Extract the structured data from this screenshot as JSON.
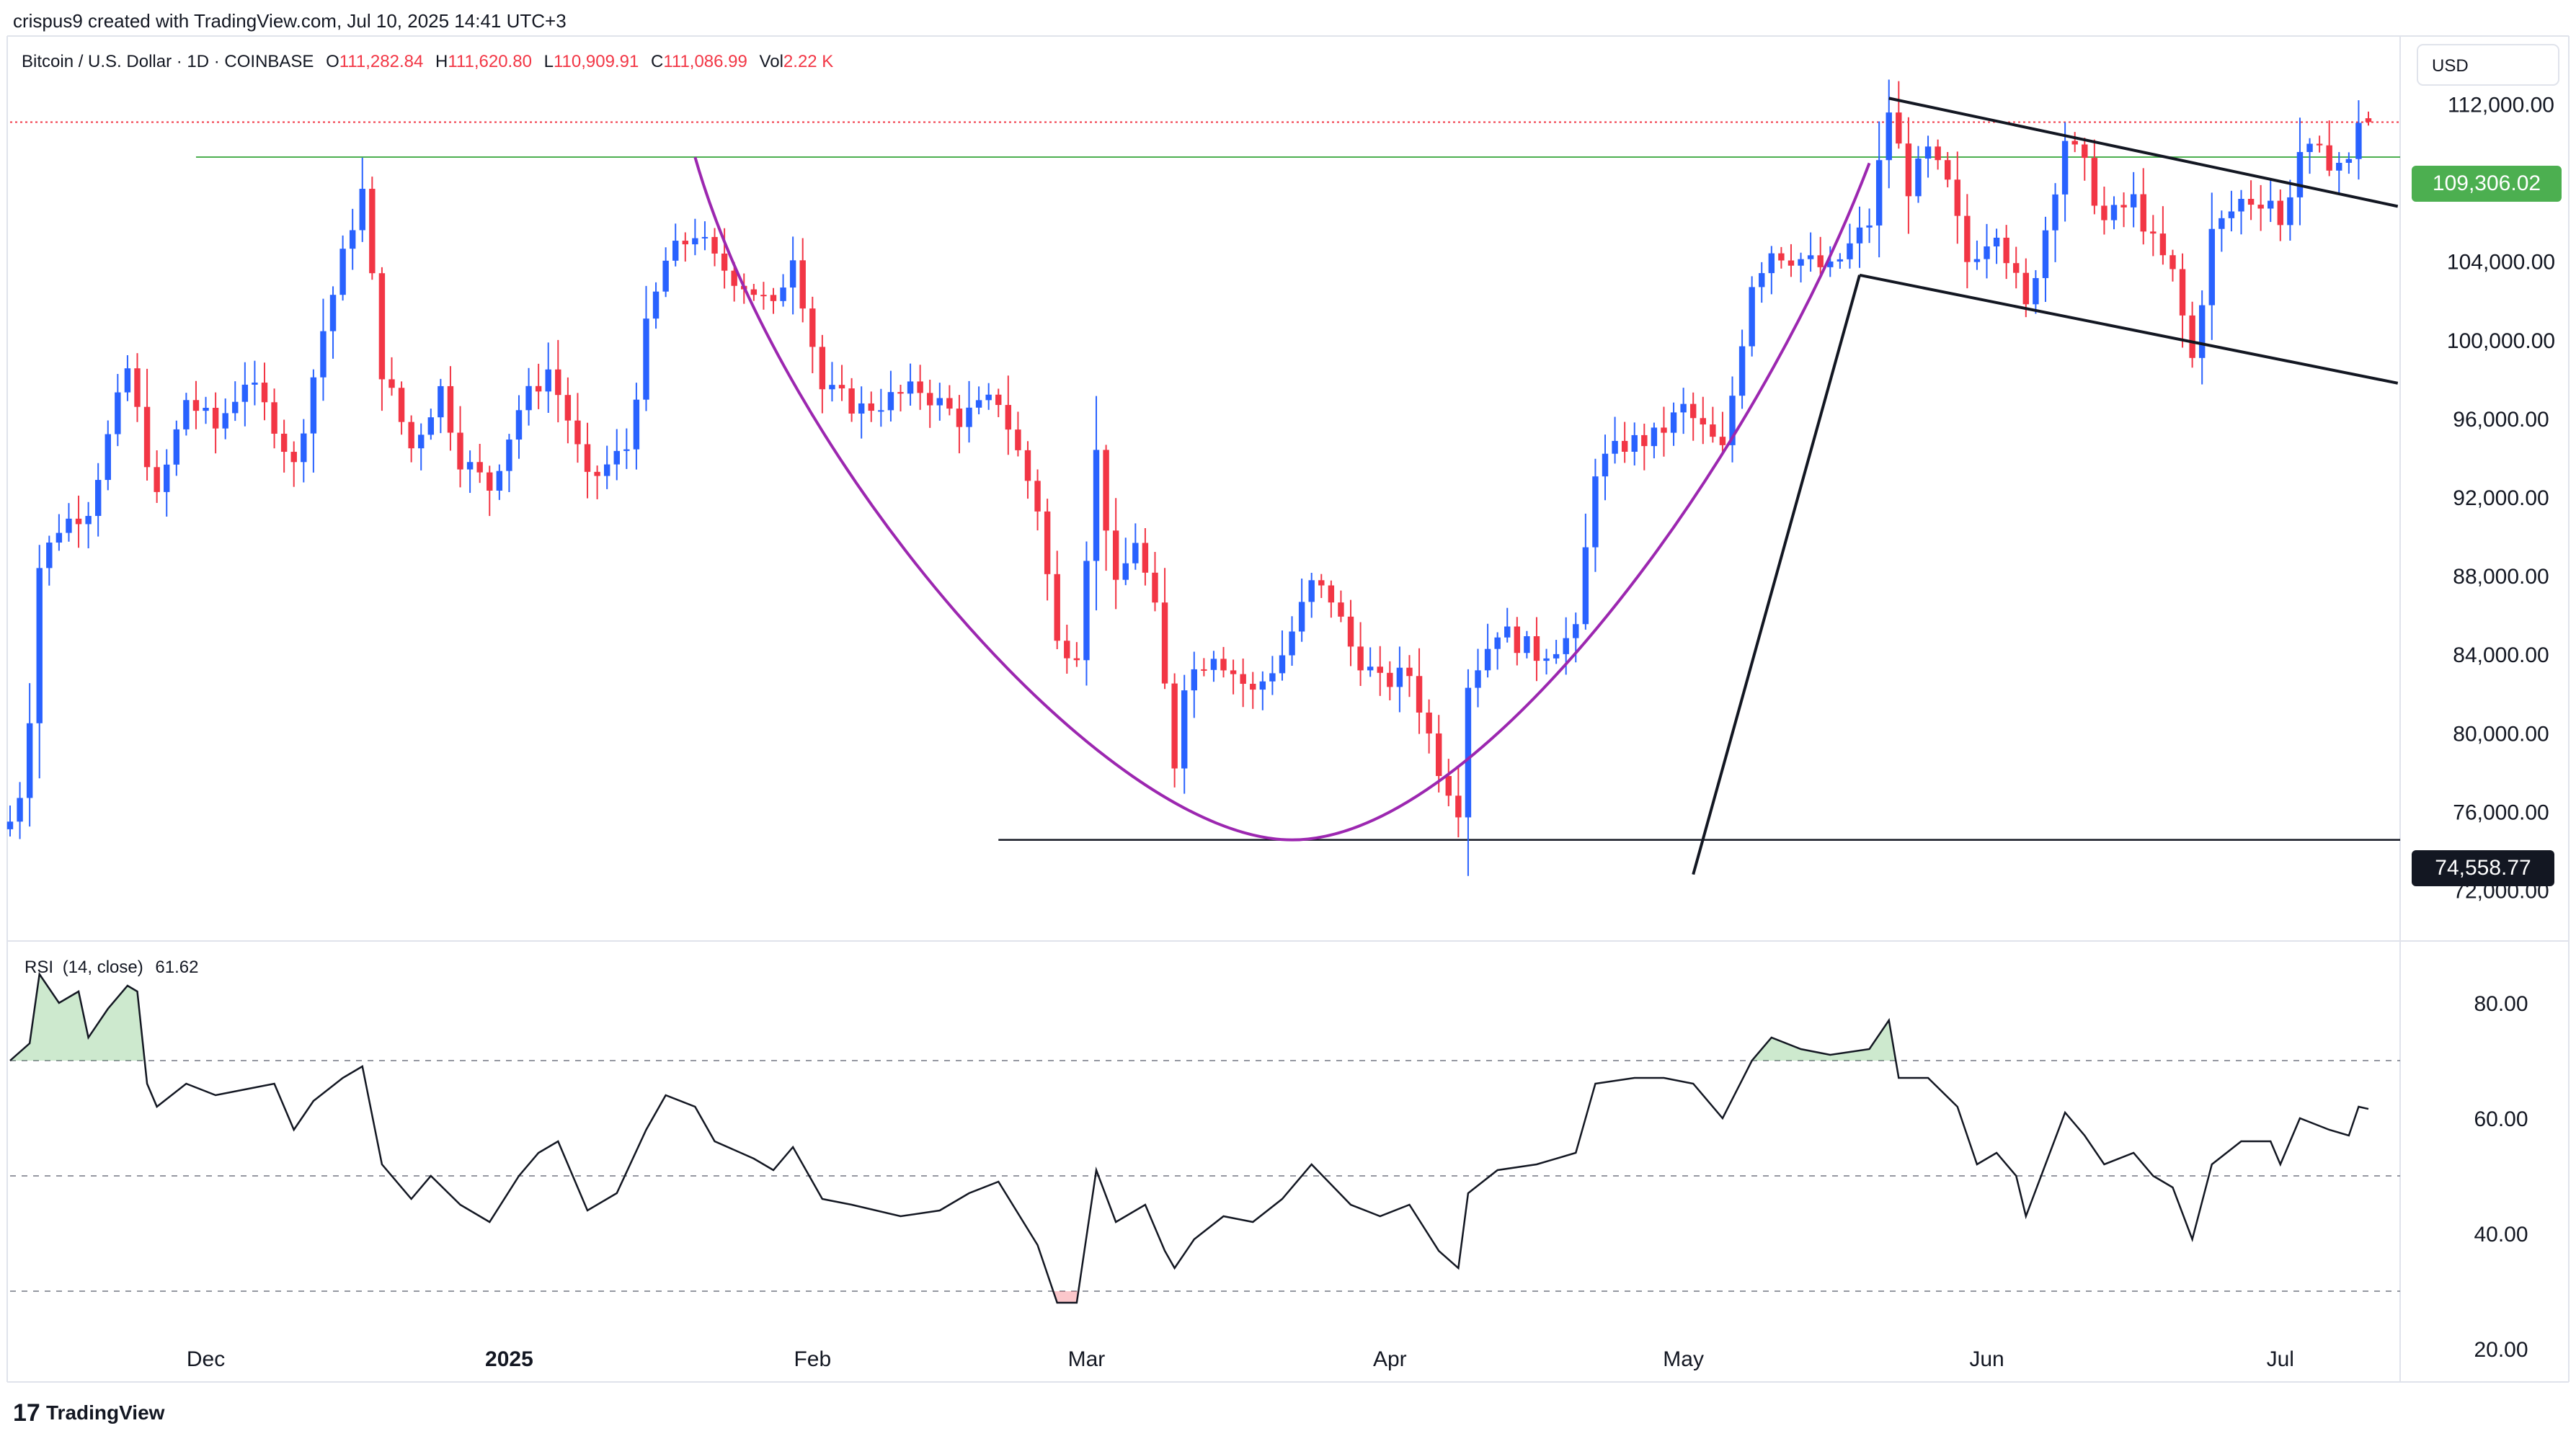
{
  "header": {
    "creator_line": "crispus9 created with TradingView.com, Jul 10, 2025 14:41 UTC+3",
    "symbol": "Bitcoin / U.S. Dollar · 1D · COINBASE",
    "ohlc": [
      {
        "key": "O",
        "value": "111,282.84"
      },
      {
        "key": "H",
        "value": "111,620.80"
      },
      {
        "key": "L",
        "value": "110,909.91"
      },
      {
        "key": "C",
        "value": "111,086.99"
      }
    ],
    "vol_label": "Vol",
    "vol_value": "2.22 K",
    "currency": "USD"
  },
  "price_badges": {
    "resistance": "109,306.02",
    "support": "74,558.77"
  },
  "rsi_label": {
    "name": "RSI",
    "params": "(14, close)",
    "value": "61.62"
  },
  "footer": {
    "logo_mark": "17",
    "brand": "TradingView"
  },
  "colors": {
    "up": "#2962ff",
    "down": "#f23645",
    "cup": "#9c27b0",
    "resistance_line": "#4caf50",
    "badge_green": "#4caf50",
    "trend_lines": "#131722",
    "rsi_line": "#131722",
    "rsi_overbought_fill": "#4caf50",
    "rsi_oversold_fill": "#f23645"
  },
  "chart_data": [
    {
      "type": "candlestick",
      "title": "Bitcoin / U.S. Dollar · 1D · COINBASE",
      "ylabel": "USD",
      "ylim": [
        70000,
        114000
      ],
      "x_range": [
        "2024-11-11",
        "2025-07-10"
      ],
      "x_ticks": [
        {
          "date": "2024-12-01",
          "label": "Dec"
        },
        {
          "date": "2025-01-01",
          "label": "2025"
        },
        {
          "date": "2025-02-01",
          "label": "Feb"
        },
        {
          "date": "2025-03-01",
          "label": "Mar"
        },
        {
          "date": "2025-04-01",
          "label": "Apr"
        },
        {
          "date": "2025-05-01",
          "label": "May"
        },
        {
          "date": "2025-06-01",
          "label": "Jun"
        },
        {
          "date": "2025-07-01",
          "label": "Jul"
        }
      ],
      "y_ticks": [
        {
          "value": 72000,
          "label": "72,000.00"
        },
        {
          "value": 76000,
          "label": "76,000.00"
        },
        {
          "value": 80000,
          "label": "80,000.00"
        },
        {
          "value": 84000,
          "label": "84,000.00"
        },
        {
          "value": 88000,
          "label": "88,000.00"
        },
        {
          "value": 92000,
          "label": "92,000.00"
        },
        {
          "value": 96000,
          "label": "96,000.00"
        },
        {
          "value": 100000,
          "label": "100,000.00"
        },
        {
          "value": 104000,
          "label": "104,000.00"
        },
        {
          "value": 108000,
          "label": "108,000.00"
        },
        {
          "value": 112000,
          "label": "112,000.00"
        }
      ],
      "close_anchors": [
        [
          "2024-11-11",
          75500
        ],
        [
          "2024-11-12",
          77000
        ],
        [
          "2024-11-13",
          81000
        ],
        [
          "2024-11-14",
          88500
        ],
        [
          "2024-11-16",
          90500
        ],
        [
          "2024-11-19",
          91500
        ],
        [
          "2024-11-21",
          95000
        ],
        [
          "2024-11-23",
          98500
        ],
        [
          "2024-11-26",
          91800
        ],
        [
          "2024-11-29",
          97000
        ],
        [
          "2024-12-02",
          95500
        ],
        [
          "2024-12-05",
          98000
        ],
        [
          "2024-12-08",
          95800
        ],
        [
          "2024-12-10",
          93500
        ],
        [
          "2024-12-13",
          100500
        ],
        [
          "2024-12-16",
          106000
        ],
        [
          "2024-12-17",
          107500
        ],
        [
          "2024-12-19",
          98500
        ],
        [
          "2024-12-22",
          94500
        ],
        [
          "2024-12-25",
          97500
        ],
        [
          "2024-12-27",
          94000
        ],
        [
          "2024-12-30",
          92500
        ],
        [
          "2025-01-02",
          96500
        ],
        [
          "2025-01-05",
          98500
        ],
        [
          "2025-01-07",
          96000
        ],
        [
          "2025-01-09",
          92700
        ],
        [
          "2025-01-13",
          94500
        ],
        [
          "2025-01-15",
          100500
        ],
        [
          "2025-01-17",
          104000
        ],
        [
          "2025-01-20",
          105500
        ],
        [
          "2025-01-22",
          104000
        ],
        [
          "2025-01-26",
          102500
        ],
        [
          "2025-01-28",
          101500
        ],
        [
          "2025-01-30",
          104500
        ],
        [
          "2025-02-02",
          97500
        ],
        [
          "2025-02-06",
          96500
        ],
        [
          "2025-02-12",
          97500
        ],
        [
          "2025-02-16",
          96000
        ],
        [
          "2025-02-20",
          97000
        ],
        [
          "2025-02-24",
          91500
        ],
        [
          "2025-02-26",
          84500
        ],
        [
          "2025-02-28",
          84300
        ],
        [
          "2025-03-02",
          94200
        ],
        [
          "2025-03-04",
          87200
        ],
        [
          "2025-03-06",
          89900
        ],
        [
          "2025-03-08",
          86100
        ],
        [
          "2025-03-10",
          78500
        ],
        [
          "2025-03-11",
          82700
        ],
        [
          "2025-03-14",
          84200
        ],
        [
          "2025-03-18",
          82000
        ],
        [
          "2025-03-21",
          84000
        ],
        [
          "2025-03-24",
          87500
        ],
        [
          "2025-03-26",
          86900
        ],
        [
          "2025-03-28",
          84400
        ],
        [
          "2025-03-31",
          82500
        ],
        [
          "2025-04-03",
          83000
        ],
        [
          "2025-04-06",
          78300
        ],
        [
          "2025-04-08",
          76300
        ],
        [
          "2025-04-09",
          82600
        ],
        [
          "2025-04-12",
          85300
        ],
        [
          "2025-04-16",
          84000
        ],
        [
          "2025-04-20",
          85000
        ],
        [
          "2025-04-22",
          93500
        ],
        [
          "2025-04-25",
          94700
        ],
        [
          "2025-04-28",
          95000
        ],
        [
          "2025-05-01",
          96500
        ],
        [
          "2025-05-05",
          94300
        ],
        [
          "2025-05-08",
          103000
        ],
        [
          "2025-05-10",
          104600
        ],
        [
          "2025-05-13",
          104100
        ],
        [
          "2025-05-16",
          103500
        ],
        [
          "2025-05-20",
          106000
        ],
        [
          "2025-05-22",
          111700
        ],
        [
          "2025-05-24",
          107800
        ],
        [
          "2025-05-26",
          109500
        ],
        [
          "2025-05-28",
          107800
        ],
        [
          "2025-05-30",
          104000
        ],
        [
          "2025-06-02",
          105800
        ],
        [
          "2025-06-05",
          101500
        ],
        [
          "2025-06-07",
          105700
        ],
        [
          "2025-06-09",
          110300
        ],
        [
          "2025-06-11",
          108700
        ],
        [
          "2025-06-13",
          106000
        ],
        [
          "2025-06-16",
          107100
        ],
        [
          "2025-06-18",
          104900
        ],
        [
          "2025-06-20",
          103300
        ],
        [
          "2025-06-22",
          99000
        ],
        [
          "2025-06-24",
          105400
        ],
        [
          "2025-06-27",
          107100
        ],
        [
          "2025-06-30",
          107200
        ],
        [
          "2025-07-01",
          105700
        ],
        [
          "2025-07-03",
          109600
        ],
        [
          "2025-07-06",
          109200
        ],
        [
          "2025-07-08",
          108900
        ],
        [
          "2025-07-09",
          111300
        ],
        [
          "2025-07-10",
          111100
        ]
      ],
      "last_candle": {
        "date": "2025-07-10",
        "open": 111282.84,
        "high": 111620.8,
        "low": 110909.91,
        "close": 111086.99
      },
      "annotations": {
        "horizontal_resistance": {
          "price": 109306.02,
          "from": "2024-11-30",
          "to": "2025-07-13"
        },
        "horizontal_support": {
          "price": 74558.77,
          "from": "2025-02-20",
          "to": "2025-07-13"
        },
        "last_price_marker": {
          "price": 111086.99
        },
        "cup_curve": {
          "start": [
            "2025-01-20",
            109300
          ],
          "bottom": [
            "2025-03-22",
            74558.77
          ],
          "end": [
            "2025-05-20",
            109000
          ]
        },
        "flagpole": {
          "from": [
            "2025-05-02",
            72800
          ],
          "to": [
            "2025-05-19",
            103300
          ]
        },
        "flag_upper": {
          "from": [
            "2025-05-22",
            112300
          ],
          "to": [
            "2025-07-13",
            106800
          ]
        },
        "flag_lower": {
          "from": [
            "2025-05-19",
            103300
          ],
          "to": [
            "2025-07-13",
            97800
          ]
        }
      }
    },
    {
      "type": "line",
      "title": "RSI (14, close)",
      "ylim": [
        15,
        90
      ],
      "y_ticks": [
        {
          "value": 20,
          "label": "20.00"
        },
        {
          "value": 40,
          "label": "40.00"
        },
        {
          "value": 60,
          "label": "60.00"
        },
        {
          "value": 80,
          "label": "80.00"
        }
      ],
      "levels": [
        70,
        50,
        30
      ],
      "series": [
        {
          "points": [
            [
              "2024-11-11",
              70
            ],
            [
              "2024-11-13",
              73
            ],
            [
              "2024-11-14",
              85
            ],
            [
              "2024-11-16",
              80
            ],
            [
              "2024-11-18",
              82
            ],
            [
              "2024-11-19",
              74
            ],
            [
              "2024-11-21",
              79
            ],
            [
              "2024-11-23",
              83
            ],
            [
              "2024-11-24",
              82
            ],
            [
              "2024-11-25",
              66
            ],
            [
              "2024-11-26",
              62
            ],
            [
              "2024-11-29",
              66
            ],
            [
              "2024-12-02",
              64
            ],
            [
              "2024-12-05",
              65
            ],
            [
              "2024-12-08",
              66
            ],
            [
              "2024-12-10",
              58
            ],
            [
              "2024-12-12",
              63
            ],
            [
              "2024-12-15",
              67
            ],
            [
              "2024-12-17",
              69
            ],
            [
              "2024-12-19",
              52
            ],
            [
              "2024-12-22",
              46
            ],
            [
              "2024-12-24",
              50
            ],
            [
              "2024-12-27",
              45
            ],
            [
              "2024-12-30",
              42
            ],
            [
              "2025-01-02",
              50
            ],
            [
              "2025-01-04",
              54
            ],
            [
              "2025-01-06",
              56
            ],
            [
              "2025-01-08",
              48
            ],
            [
              "2025-01-09",
              44
            ],
            [
              "2025-01-12",
              47
            ],
            [
              "2025-01-15",
              58
            ],
            [
              "2025-01-17",
              64
            ],
            [
              "2025-01-20",
              62
            ],
            [
              "2025-01-22",
              56
            ],
            [
              "2025-01-26",
              53
            ],
            [
              "2025-01-28",
              51
            ],
            [
              "2025-01-30",
              55
            ],
            [
              "2025-02-02",
              46
            ],
            [
              "2025-02-05",
              45
            ],
            [
              "2025-02-10",
              43
            ],
            [
              "2025-02-14",
              44
            ],
            [
              "2025-02-17",
              47
            ],
            [
              "2025-02-20",
              49
            ],
            [
              "2025-02-24",
              38
            ],
            [
              "2025-02-26",
              28
            ],
            [
              "2025-02-28",
              28
            ],
            [
              "2025-03-02",
              51
            ],
            [
              "2025-03-04",
              42
            ],
            [
              "2025-03-07",
              45
            ],
            [
              "2025-03-09",
              37
            ],
            [
              "2025-03-10",
              34
            ],
            [
              "2025-03-12",
              39
            ],
            [
              "2025-03-15",
              43
            ],
            [
              "2025-03-18",
              42
            ],
            [
              "2025-03-21",
              46
            ],
            [
              "2025-03-24",
              52
            ],
            [
              "2025-03-28",
              45
            ],
            [
              "2025-03-31",
              43
            ],
            [
              "2025-04-03",
              45
            ],
            [
              "2025-04-06",
              37
            ],
            [
              "2025-04-08",
              34
            ],
            [
              "2025-04-09",
              47
            ],
            [
              "2025-04-12",
              51
            ],
            [
              "2025-04-16",
              52
            ],
            [
              "2025-04-20",
              54
            ],
            [
              "2025-04-22",
              66
            ],
            [
              "2025-04-26",
              67
            ],
            [
              "2025-04-29",
              67
            ],
            [
              "2025-05-02",
              66
            ],
            [
              "2025-05-05",
              60
            ],
            [
              "2025-05-08",
              70
            ],
            [
              "2025-05-10",
              74
            ],
            [
              "2025-05-13",
              72
            ],
            [
              "2025-05-16",
              71
            ],
            [
              "2025-05-20",
              72
            ],
            [
              "2025-05-22",
              77
            ],
            [
              "2025-05-23",
              67
            ],
            [
              "2025-05-26",
              67
            ],
            [
              "2025-05-29",
              62
            ],
            [
              "2025-05-31",
              52
            ],
            [
              "2025-06-02",
              54
            ],
            [
              "2025-06-04",
              50
            ],
            [
              "2025-06-05",
              43
            ],
            [
              "2025-06-07",
              52
            ],
            [
              "2025-06-09",
              61
            ],
            [
              "2025-06-11",
              57
            ],
            [
              "2025-06-13",
              52
            ],
            [
              "2025-06-16",
              54
            ],
            [
              "2025-06-18",
              50
            ],
            [
              "2025-06-20",
              48
            ],
            [
              "2025-06-22",
              39
            ],
            [
              "2025-06-24",
              52
            ],
            [
              "2025-06-27",
              56
            ],
            [
              "2025-06-30",
              56
            ],
            [
              "2025-07-01",
              52
            ],
            [
              "2025-07-03",
              60
            ],
            [
              "2025-07-06",
              58
            ],
            [
              "2025-07-08",
              57
            ],
            [
              "2025-07-09",
              62
            ],
            [
              "2025-07-10",
              61.62
            ]
          ]
        }
      ]
    }
  ]
}
